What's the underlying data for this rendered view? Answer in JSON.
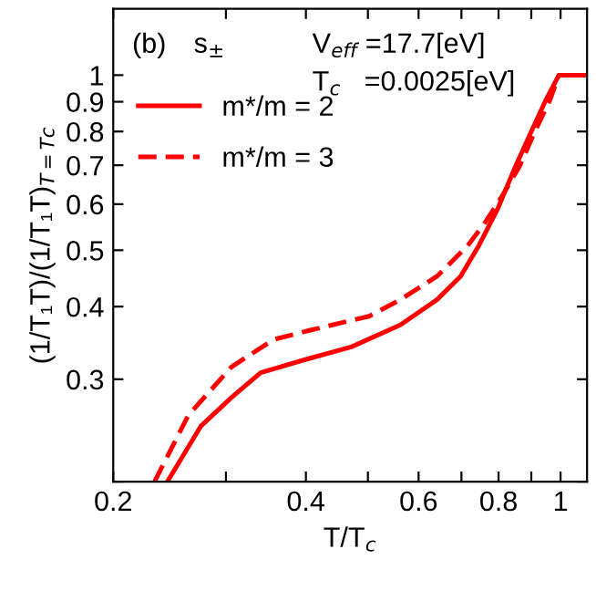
{
  "chart_data": {
    "type": "line",
    "log": "xy",
    "grid": false,
    "legend": "top left",
    "marker": "none",
    "xlabel": "T/T$_{c}$",
    "ylabel": "(1/T₁T)/(1/T₁T)$_{T=Tc}$",
    "annotations": [
      "(b)",
      "s$_{±}$",
      "V$_{eff}$ =17.7[eV]",
      "T$_{c}$   =0.0025[eV]"
    ],
    "xlim": [
      0.2,
      1.1
    ],
    "ylim": [
      0.2,
      1.3
    ],
    "xticks": [
      0.2,
      {
        "value": 0.3,
        "label": null
      },
      0.4,
      {
        "value": 0.5,
        "label": null
      },
      0.6,
      {
        "value": 0.7,
        "label": null
      },
      0.8,
      {
        "value": 0.9,
        "label": null
      },
      1
    ],
    "yticks": [
      {
        "value": 0.2,
        "label": null
      },
      0.3,
      0.4,
      0.5,
      0.6,
      0.7,
      0.8,
      0.9,
      1
    ],
    "series": [
      {
        "name": "m*/m = 2",
        "color": "#ff0000",
        "line_style": "solid",
        "x": [
          0.243,
          0.274,
          0.306,
          0.34,
          0.398,
          0.471,
          0.562,
          0.641,
          0.698,
          0.745,
          0.797,
          0.849,
          0.9,
          0.948,
          0.994,
          1.1
        ],
        "values": [
          0.2,
          0.249,
          0.279,
          0.308,
          0.324,
          0.341,
          0.372,
          0.411,
          0.451,
          0.509,
          0.588,
          0.694,
          0.8,
          0.905,
          1.0,
          1.0
        ]
      },
      {
        "name": "m*/m = 3",
        "color": "#ff0000",
        "line_style": "dashed",
        "x": [
          0.232,
          0.262,
          0.306,
          0.356,
          0.405,
          0.502,
          0.562,
          0.641,
          0.716,
          0.764,
          0.806,
          0.861,
          0.912,
          0.962,
          0.994,
          1.1
        ],
        "values": [
          0.2,
          0.26,
          0.315,
          0.351,
          0.364,
          0.385,
          0.411,
          0.451,
          0.509,
          0.56,
          0.614,
          0.694,
          0.8,
          0.905,
          1.0,
          1.0
        ]
      }
    ]
  }
}
